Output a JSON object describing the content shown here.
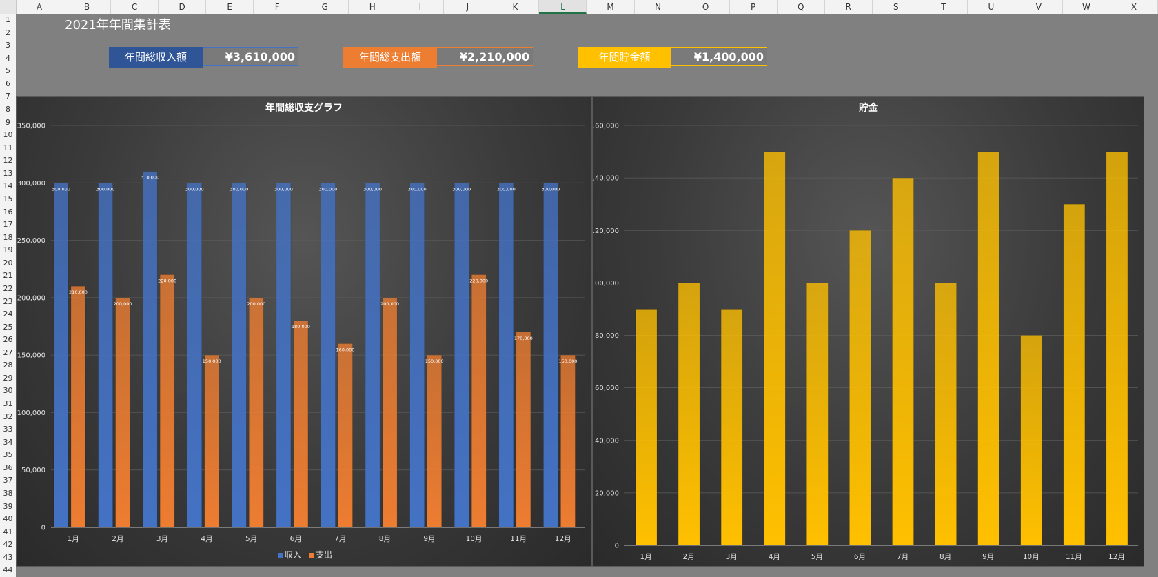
{
  "spreadsheet": {
    "columns": [
      "A",
      "B",
      "C",
      "D",
      "E",
      "F",
      "G",
      "H",
      "I",
      "J",
      "K",
      "L",
      "M",
      "N",
      "O",
      "P",
      "Q",
      "R",
      "S",
      "T",
      "U",
      "V",
      "W",
      "X"
    ],
    "selected_column": "L",
    "rows": [
      "1",
      "2",
      "3",
      "4",
      "5",
      "6",
      "7",
      "8",
      "9",
      "10",
      "11",
      "12",
      "13",
      "14",
      "15",
      "16",
      "17",
      "18",
      "19",
      "20",
      "21",
      "22",
      "23",
      "24",
      "25",
      "26",
      "27",
      "28",
      "29",
      "30",
      "31",
      "32",
      "33",
      "34",
      "35",
      "36",
      "37",
      "38",
      "39",
      "40",
      "41",
      "42",
      "43",
      "44"
    ]
  },
  "sheet_title": "2021年年間集計表",
  "kpis": [
    {
      "label": "年間総収入額",
      "value": "¥3,610,000",
      "color": "#2f5597",
      "accent": "#4472c4"
    },
    {
      "label": "年間総支出額",
      "value": "¥2,210,000",
      "color": "#ed7d31",
      "accent": "#ed7d31"
    },
    {
      "label": "年間貯金額",
      "value": "¥1,400,000",
      "color": "#ffc000",
      "accent": "#ffc000"
    }
  ],
  "chart_data": [
    {
      "type": "bar",
      "title": "年間総収支グラフ",
      "categories": [
        "1月",
        "2月",
        "3月",
        "4月",
        "5月",
        "6月",
        "7月",
        "8月",
        "9月",
        "10月",
        "11月",
        "12月"
      ],
      "series": [
        {
          "name": "収入",
          "color": "#4472c4",
          "values": [
            300000,
            300000,
            310000,
            300000,
            300000,
            300000,
            300000,
            300000,
            300000,
            300000,
            300000,
            300000
          ],
          "labels": [
            "300,000",
            "300,000",
            "310,000",
            "300,000",
            "300,000",
            "300,000",
            "300,000",
            "300,000",
            "300,000",
            "300,000",
            "300,000",
            "300,000"
          ]
        },
        {
          "name": "支出",
          "color": "#ed7d31",
          "values": [
            210000,
            200000,
            220000,
            150000,
            200000,
            180000,
            160000,
            200000,
            150000,
            220000,
            170000,
            150000
          ],
          "labels": [
            "210,000",
            "200,000",
            "220,000",
            "150,000",
            "200,000",
            "180,000",
            "160,000",
            "200,000",
            "150,000",
            "220,000",
            "170,000",
            "150,000"
          ]
        }
      ],
      "ylim": [
        0,
        350000
      ],
      "yticks": [
        0,
        50000,
        100000,
        150000,
        200000,
        250000,
        300000,
        350000
      ],
      "ytick_labels": [
        "0",
        "50,000",
        "100,000",
        "150,000",
        "200,000",
        "250,000",
        "300,000",
        "350,000"
      ],
      "legend": "bottom",
      "grid": true
    },
    {
      "type": "bar",
      "title": "貯金",
      "categories": [
        "1月",
        "2月",
        "3月",
        "4月",
        "5月",
        "6月",
        "7月",
        "8月",
        "9月",
        "10月",
        "11月",
        "12月"
      ],
      "series": [
        {
          "color": "#ffc000",
          "values": [
            90000,
            100000,
            90000,
            150000,
            100000,
            120000,
            140000,
            100000,
            150000,
            80000,
            130000,
            150000
          ]
        }
      ],
      "ylim": [
        0,
        160000
      ],
      "yticks": [
        0,
        20000,
        40000,
        60000,
        80000,
        100000,
        120000,
        140000,
        160000
      ],
      "ytick_labels": [
        "0",
        "20,000",
        "40,000",
        "60,000",
        "80,000",
        "100,000",
        "120,000",
        "140,000",
        "160,000"
      ],
      "grid": true
    }
  ]
}
